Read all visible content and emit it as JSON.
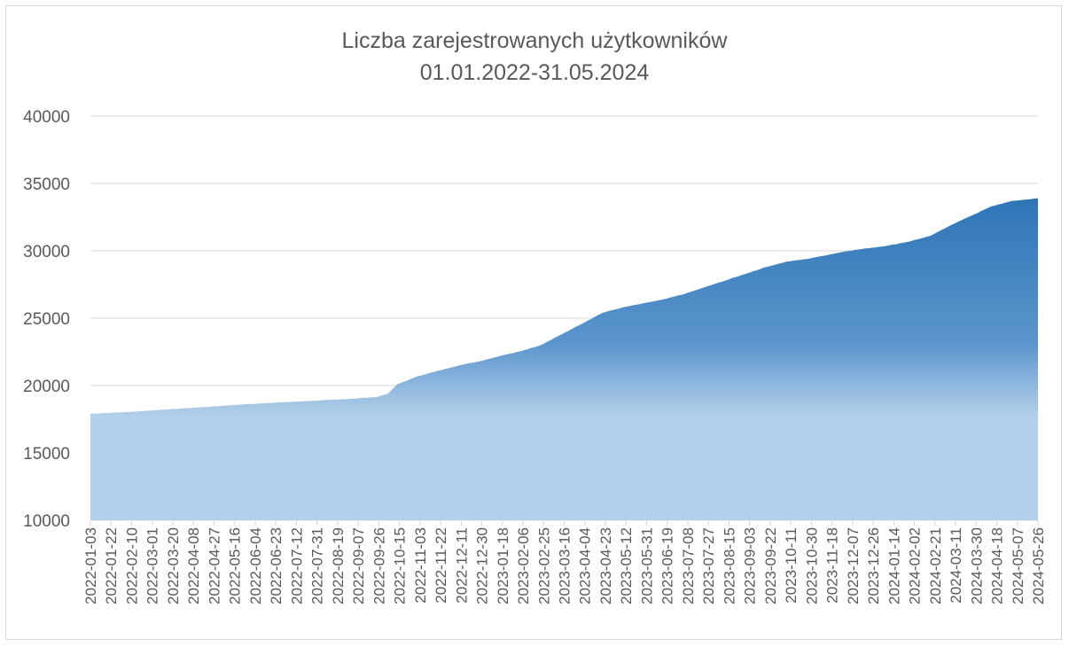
{
  "chart_data": {
    "type": "area",
    "title": "Liczba zarejestrowanych użytkowników",
    "subtitle": "01.01.2022-31.05.2024",
    "xlabel": "",
    "ylabel": "",
    "ylim": [
      10000,
      40000
    ],
    "yticks": [
      10000,
      15000,
      20000,
      25000,
      30000,
      35000,
      40000
    ],
    "grid": true,
    "legend": "none",
    "colors": {
      "top": "#2e75b6",
      "mid": "#5b95cd",
      "bottom": "#b4d0ea",
      "grid": "#d9d9d9",
      "text": "#595959"
    },
    "x_tick_labels": [
      "2022-01-03",
      "2022-01-22",
      "2022-02-10",
      "2022-03-01",
      "2022-03-20",
      "2022-04-08",
      "2022-04-27",
      "2022-05-16",
      "2022-06-04",
      "2022-06-23",
      "2022-07-12",
      "2022-07-31",
      "2022-08-19",
      "2022-09-07",
      "2022-09-26",
      "2022-10-15",
      "2022-11-03",
      "2022-11-22",
      "2022-12-11",
      "2022-12-30",
      "2023-01-18",
      "2023-02-06",
      "2023-02-25",
      "2023-03-16",
      "2023-04-04",
      "2023-04-23",
      "2023-05-12",
      "2023-05-31",
      "2023-06-19",
      "2023-07-08",
      "2023-07-27",
      "2023-08-15",
      "2023-09-03",
      "2023-09-22",
      "2023-10-11",
      "2023-10-30",
      "2023-11-18",
      "2023-12-07",
      "2023-12-26",
      "2024-01-14",
      "2024-02-02",
      "2024-02-21",
      "2024-03-11",
      "2024-03-30",
      "2024-04-18",
      "2024-05-07",
      "2024-05-26"
    ],
    "x": [
      "2022-01-03",
      "2022-02-10",
      "2022-03-20",
      "2022-04-27",
      "2022-06-04",
      "2022-07-12",
      "2022-08-19",
      "2022-09-26",
      "2022-10-06",
      "2022-10-15",
      "2022-11-03",
      "2022-11-22",
      "2022-12-11",
      "2022-12-30",
      "2023-01-18",
      "2023-02-06",
      "2023-02-25",
      "2023-03-16",
      "2023-04-04",
      "2023-04-23",
      "2023-05-12",
      "2023-05-31",
      "2023-06-19",
      "2023-07-08",
      "2023-07-27",
      "2023-08-15",
      "2023-09-03",
      "2023-09-22",
      "2023-10-11",
      "2023-10-30",
      "2023-11-18",
      "2023-12-07",
      "2023-12-26",
      "2024-01-14",
      "2024-02-02",
      "2024-02-21",
      "2024-03-11",
      "2024-03-30",
      "2024-04-18",
      "2024-05-07",
      "2024-05-31"
    ],
    "series": [
      {
        "values": [
          17900,
          18050,
          18250,
          18450,
          18650,
          18800,
          18950,
          19150,
          19400,
          20100,
          20700,
          21100,
          21500,
          21800,
          22200,
          22550,
          23000,
          23800,
          24600,
          25400,
          25800,
          26100,
          26400,
          26800,
          27300,
          27800,
          28300,
          28800,
          29200,
          29400,
          29700,
          30000,
          30200,
          30400,
          30700,
          31100,
          31900,
          32600,
          33300,
          33700,
          33900
        ]
      }
    ]
  }
}
